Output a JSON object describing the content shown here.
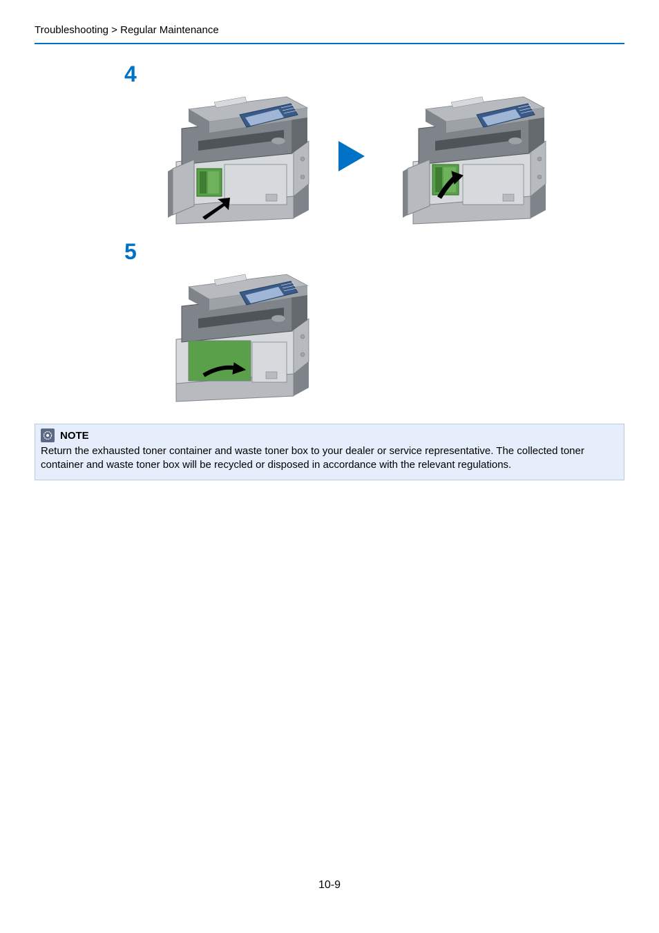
{
  "breadcrumb": "Troubleshooting > Regular Maintenance",
  "colors": {
    "rule": "#0072c6",
    "step_number": "#0072c6",
    "arrow": "#0072c6",
    "note_bg": "#e6eefb",
    "note_border": "#b9c8e6",
    "note_icon_bg": "#5a6a85",
    "printer_body_dark": "#7e8489",
    "printer_body_mid": "#b7bbbf",
    "printer_body_light": "#d7dadd",
    "printer_panel_blue": "#3a5b8a",
    "printer_screen": "#9fb6d6",
    "tray_green": "#5aa04a",
    "black": "#000000"
  },
  "steps": [
    {
      "number": "4"
    },
    {
      "number": "5"
    }
  ],
  "note": {
    "title": "NOTE",
    "body": "Return the exhausted toner container and waste toner box to your dealer or service representative. The collected toner container and waste toner box will be recycled or disposed in accordance with the relevant regulations."
  },
  "page_number": "10-9"
}
